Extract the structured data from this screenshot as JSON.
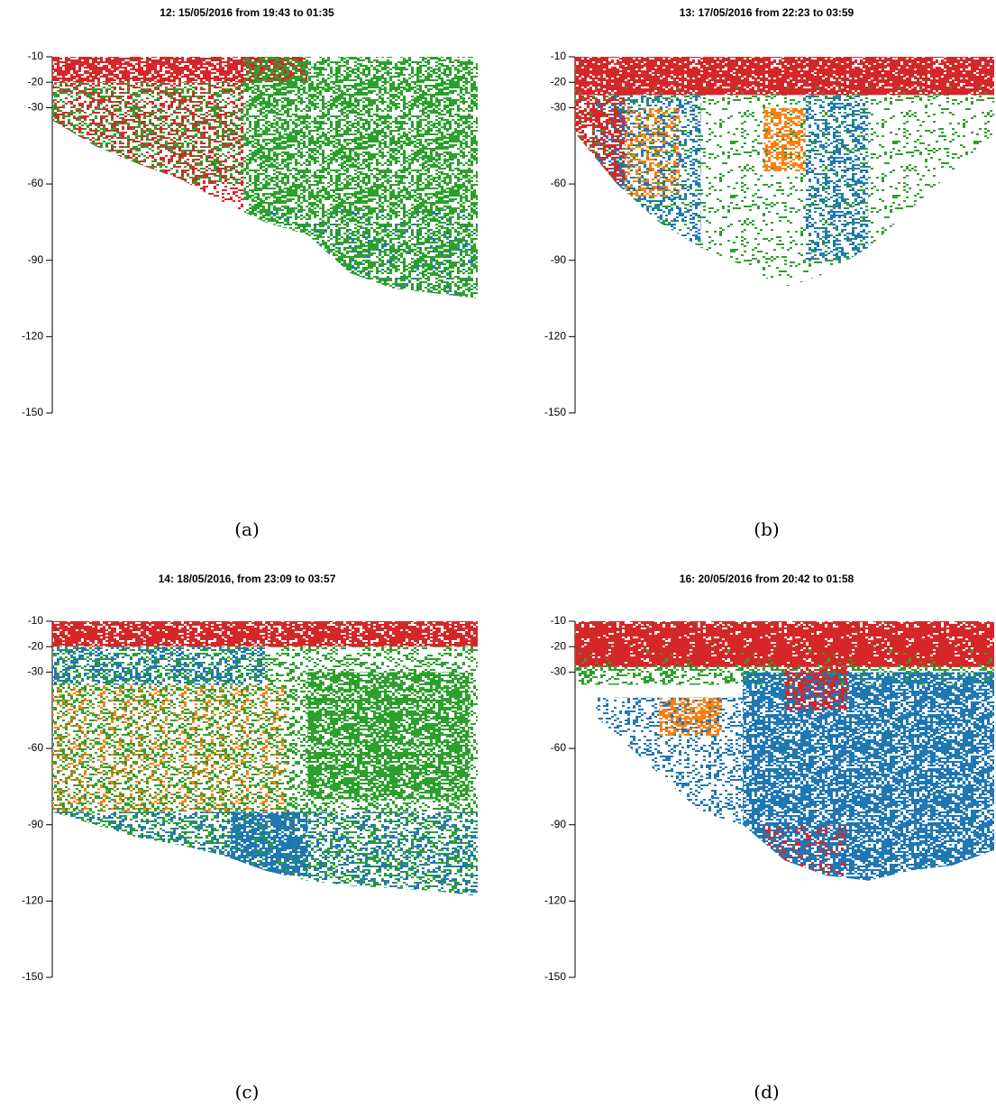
{
  "chart_data": [
    {
      "type": "echogram",
      "title": "12: 15/05/2016 from 19:43 to 01:35",
      "caption": "(a)",
      "ylim": [
        -150,
        -10
      ],
      "yticks": [
        -10,
        -20,
        -30,
        -60,
        -90,
        -120,
        -150
      ],
      "categories": [
        null,
        null,
        null,
        null,
        null,
        null,
        null,
        null,
        null,
        null,
        null
      ],
      "values": [
        -35,
        -45,
        -52,
        -58,
        -67,
        -75,
        -80,
        -95,
        -101,
        -103,
        -105
      ],
      "layers": [
        {
          "color": "#d62728",
          "from": -10,
          "to": -20,
          "span": [
            0,
            0.6
          ],
          "density": 0.7
        },
        {
          "color": "#2ca02c",
          "from": -20,
          "to": -60,
          "span": [
            0,
            0.45
          ],
          "density": 0.35
        },
        {
          "color": "#d62728",
          "from": -20,
          "to": -70,
          "span": [
            0,
            0.45
          ],
          "density": 0.3
        },
        {
          "color": "#2ca02c",
          "from": -10,
          "to": -110,
          "span": [
            0.45,
            1
          ],
          "density": 0.55
        },
        {
          "color": "#1f77b4",
          "from": -70,
          "to": -105,
          "span": [
            0.5,
            1
          ],
          "density": 0.05
        }
      ]
    },
    {
      "type": "echogram",
      "title": "13: 17/05/2016 from 22:23 to 03:59",
      "caption": "(b)",
      "ylim": [
        -150,
        -10
      ],
      "yticks": [
        -10,
        -20,
        -30,
        -60,
        -90,
        -120,
        -150
      ],
      "categories": [
        null,
        null,
        null,
        null,
        null,
        null,
        null,
        null,
        null,
        null,
        null
      ],
      "values": [
        -40,
        -60,
        -75,
        -85,
        -92,
        -101,
        -95,
        -85,
        -70,
        -55,
        -40
      ],
      "layers": [
        {
          "color": "#2ca02c",
          "from": -20,
          "to": -100,
          "span": [
            0,
            1
          ],
          "density": 0.12
        },
        {
          "color": "#1f77b4",
          "from": -25,
          "to": -90,
          "span": [
            0.05,
            0.3
          ],
          "density": 0.3
        },
        {
          "color": "#1f77b4",
          "from": -25,
          "to": -90,
          "span": [
            0.55,
            0.7
          ],
          "density": 0.3
        },
        {
          "color": "#ff7f0e",
          "from": -30,
          "to": -65,
          "span": [
            0.12,
            0.25
          ],
          "density": 0.35
        },
        {
          "color": "#ff7f0e",
          "from": -30,
          "to": -55,
          "span": [
            0.45,
            0.55
          ],
          "density": 0.5
        },
        {
          "color": "#d62728",
          "from": -10,
          "to": -25,
          "span": [
            0,
            1
          ],
          "density": 0.85
        },
        {
          "color": "#d62728",
          "from": -25,
          "to": -60,
          "span": [
            0,
            0.12
          ],
          "density": 0.5
        }
      ]
    },
    {
      "type": "echogram",
      "title": "14: 18/05/2016, from 23:09 to 03:57",
      "caption": "(c)",
      "ylim": [
        -150,
        -10
      ],
      "yticks": [
        -10,
        -20,
        -30,
        -60,
        -90,
        -120,
        -150
      ],
      "categories": [
        null,
        null,
        null,
        null,
        null,
        null,
        null,
        null,
        null,
        null,
        null
      ],
      "values": [
        -85,
        -90,
        -95,
        -98,
        -102,
        -108,
        -112,
        -114,
        -115,
        -116,
        -118
      ],
      "layers": [
        {
          "color": "#2ca02c",
          "from": -20,
          "to": -120,
          "span": [
            0,
            1
          ],
          "density": 0.3
        },
        {
          "color": "#1f77b4",
          "from": -20,
          "to": -35,
          "span": [
            0,
            0.5
          ],
          "density": 0.3
        },
        {
          "color": "#ff7f0e",
          "from": -35,
          "to": -85,
          "span": [
            0,
            0.55
          ],
          "density": 0.15
        },
        {
          "color": "#2ca02c",
          "from": -30,
          "to": -80,
          "span": [
            0.6,
            0.98
          ],
          "density": 0.55
        },
        {
          "color": "#1f77b4",
          "from": -85,
          "to": -120,
          "span": [
            0,
            1
          ],
          "density": 0.25
        },
        {
          "color": "#1f77b4",
          "from": -85,
          "to": -110,
          "span": [
            0.42,
            0.6
          ],
          "density": 0.6
        },
        {
          "color": "#d62728",
          "from": -10,
          "to": -20,
          "span": [
            0,
            1
          ],
          "density": 0.8
        }
      ]
    },
    {
      "type": "echogram",
      "title": "16: 20/05/2016 from 20:42 to 01:58",
      "caption": "(d)",
      "ylim": [
        -150,
        -10
      ],
      "yticks": [
        -10,
        -20,
        -30,
        -60,
        -90,
        -120,
        -150
      ],
      "categories": [
        null,
        null,
        null,
        null,
        null,
        null,
        null,
        null,
        null,
        null,
        null
      ],
      "values": [
        -40,
        -55,
        -70,
        -85,
        -90,
        -104,
        -110,
        -112,
        -108,
        -106,
        -100
      ],
      "layers": [
        {
          "color": "#2ca02c",
          "from": -20,
          "to": -35,
          "span": [
            0,
            1
          ],
          "density": 0.4
        },
        {
          "color": "#1f77b4",
          "from": -30,
          "to": -115,
          "span": [
            0.4,
            1
          ],
          "density": 0.7
        },
        {
          "color": "#1f77b4",
          "from": -40,
          "to": -90,
          "span": [
            0.05,
            0.4
          ],
          "density": 0.25
        },
        {
          "color": "#ff7f0e",
          "from": -40,
          "to": -55,
          "span": [
            0.2,
            0.35
          ],
          "density": 0.5
        },
        {
          "color": "#d62728",
          "from": -90,
          "to": -110,
          "span": [
            0.45,
            0.65
          ],
          "density": 0.2
        },
        {
          "color": "#d62728",
          "from": -10,
          "to": -28,
          "span": [
            0,
            1
          ],
          "density": 0.85
        },
        {
          "color": "#d62728",
          "from": -28,
          "to": -45,
          "span": [
            0.5,
            0.65
          ],
          "density": 0.5
        }
      ]
    }
  ]
}
